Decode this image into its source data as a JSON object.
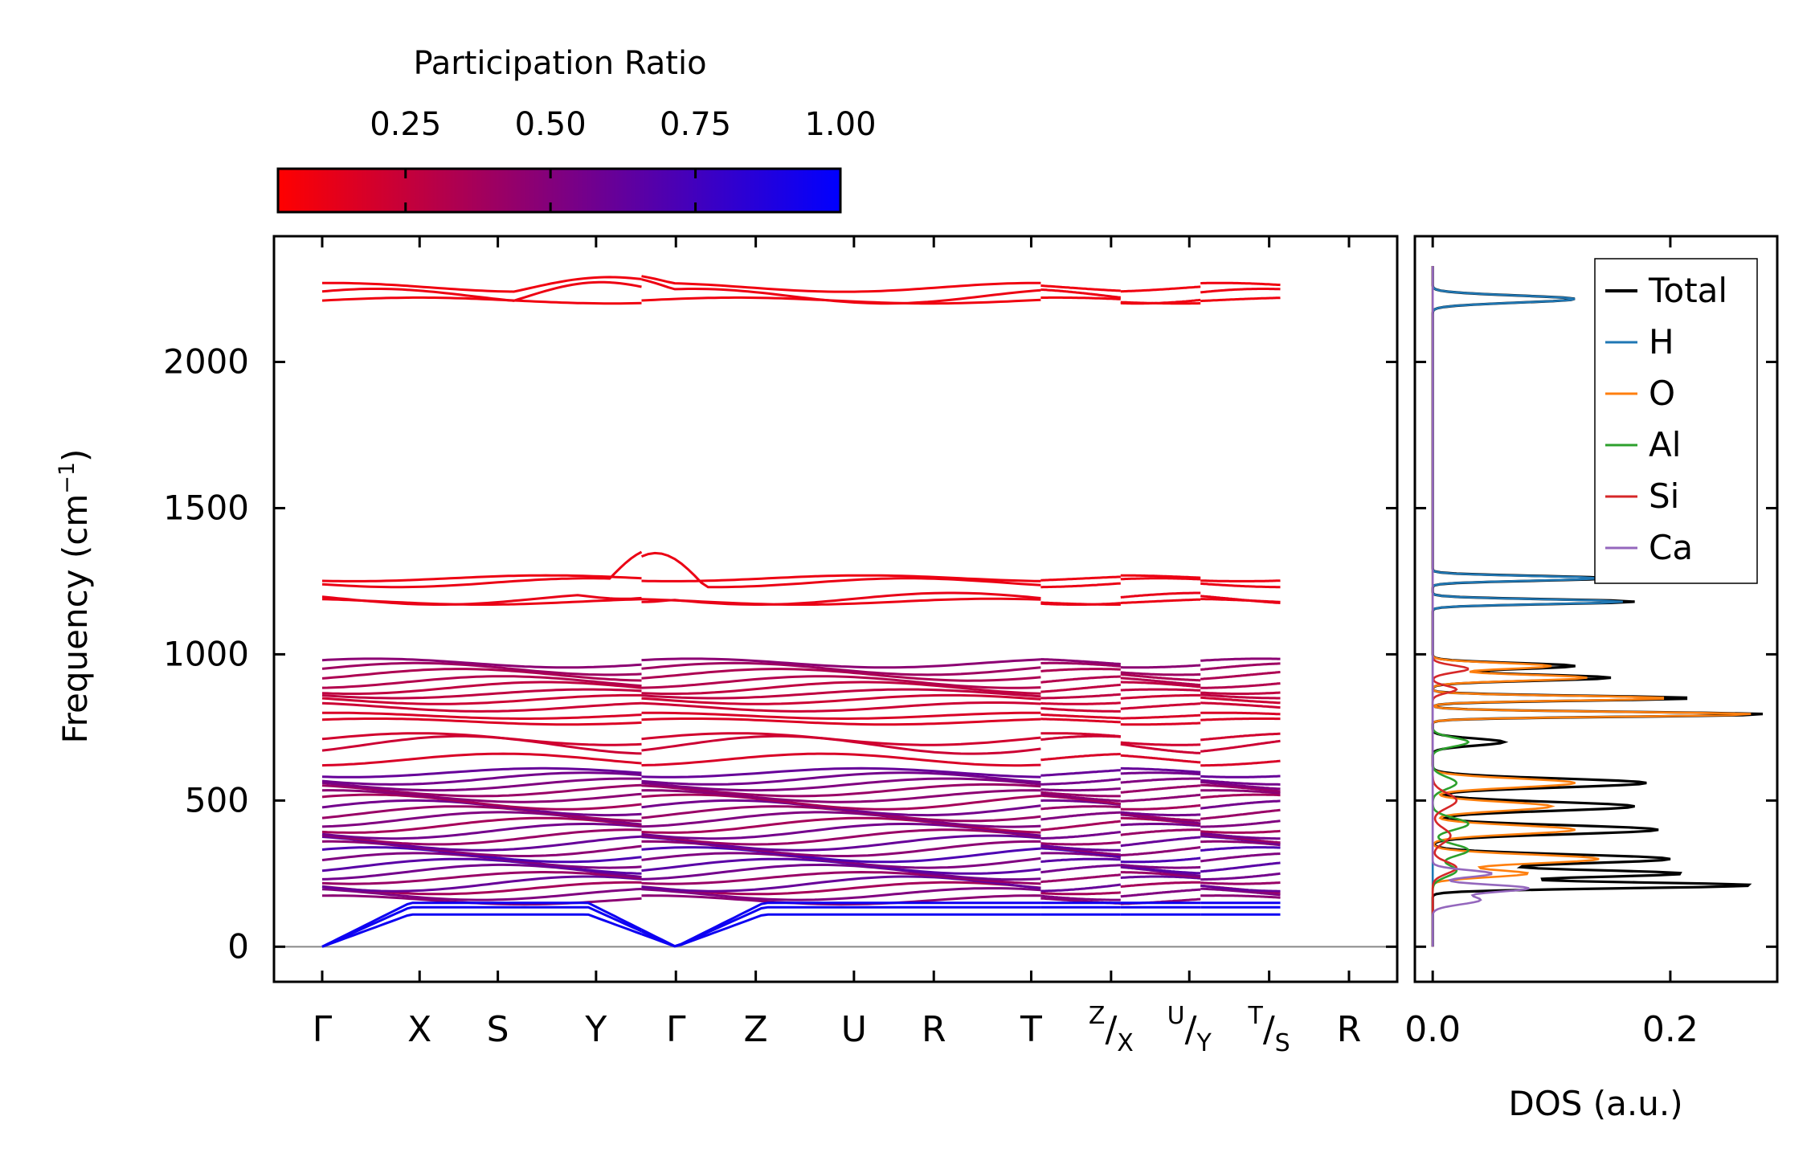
{
  "colorbar": {
    "title": "Participation Ratio",
    "ticks": [
      "0.25",
      "0.50",
      "0.75",
      "1.00"
    ],
    "tick_values": [
      0.25,
      0.5,
      0.75,
      1.0
    ],
    "range": [
      0.03,
      1.0
    ],
    "color_low": "#ff0000",
    "color_high": "#0000ff"
  },
  "chart_data": [
    {
      "type": "line",
      "name": "phonon-band-structure",
      "ylabel_main": "Frequency (cm",
      "ylabel_sup": "−1",
      "ylabel_close": ")",
      "ylim": [
        -120,
        2430
      ],
      "yticks": [
        "0",
        "500",
        "1000",
        "1500",
        "2000"
      ],
      "ytick_values": [
        0,
        500,
        1000,
        1500,
        2000
      ],
      "x_labels": [
        {
          "main": "Γ",
          "pos": 0
        },
        {
          "main": "X",
          "pos": 1
        },
        {
          "main": "S",
          "pos": 2
        },
        {
          "main": "Y",
          "pos": 3
        },
        {
          "main": "Γ",
          "pos": 4
        },
        {
          "main": "Z",
          "pos": 5
        },
        {
          "main": "U",
          "pos": 6
        },
        {
          "main": "R",
          "pos": 7
        },
        {
          "main": "T",
          "pos": 8
        },
        {
          "sup": "Z",
          "main": "/X",
          "pos": 9
        },
        {
          "sup": "U",
          "main": "/Y",
          "pos": 10
        },
        {
          "sup": "T",
          "main": "/S",
          "pos": 11
        },
        {
          "main": "R",
          "pos": 12
        }
      ],
      "tick_path_positions": [
        0,
        1.22,
        2.2,
        3.43,
        4.43,
        5.43,
        6.66,
        7.66,
        8.88,
        9.88,
        10.86,
        11.86,
        12.86
      ],
      "segments": [
        [
          0,
          4
        ],
        [
          4,
          9
        ],
        [
          9,
          10
        ],
        [
          10,
          11
        ],
        [
          11,
          12
        ]
      ],
      "x_total": 12.86,
      "baseline": 0,
      "bands": [
        {
          "freq": 2210,
          "pr": 0.06,
          "amp": 10
        },
        {
          "freq": 2225,
          "pr": 0.07,
          "amp": 25,
          "bump": {
            "center": 3.4,
            "width": 1.0,
            "height": 70
          }
        },
        {
          "freq": 2255,
          "pr": 0.06,
          "amp": 15,
          "bump": {
            "center": 3.4,
            "width": 1.0,
            "height": 40
          }
        },
        {
          "freq": 1180,
          "pr": 0.08,
          "amp": 10
        },
        {
          "freq": 1190,
          "pr": 0.09,
          "amp": 20,
          "bump": {
            "center": 3.8,
            "width": 0.6,
            "height": -20
          }
        },
        {
          "freq": 1245,
          "pr": 0.08,
          "amp": 15,
          "bump": {
            "center": 4.2,
            "width": 0.6,
            "height": 110
          }
        },
        {
          "freq": 1260,
          "pr": 0.07,
          "amp": 10
        },
        {
          "freq": 640,
          "pr": 0.15,
          "amp": 20
        },
        {
          "freq": 690,
          "pr": 0.2,
          "amp": 30
        },
        {
          "freq": 710,
          "pr": 0.18,
          "amp": 20
        },
        {
          "freq": 770,
          "pr": 0.14,
          "amp": 10
        },
        {
          "freq": 790,
          "pr": 0.15,
          "amp": 10
        },
        {
          "freq": 820,
          "pr": 0.2,
          "amp": 15
        },
        {
          "freq": 845,
          "pr": 0.2,
          "amp": 15
        },
        {
          "freq": 865,
          "pr": 0.25,
          "amp": 15
        },
        {
          "freq": 885,
          "pr": 0.25,
          "amp": 20
        },
        {
          "freq": 905,
          "pr": 0.3,
          "amp": 20
        },
        {
          "freq": 930,
          "pr": 0.32,
          "amp": 20
        },
        {
          "freq": 950,
          "pr": 0.38,
          "amp": 20
        },
        {
          "freq": 970,
          "pr": 0.45,
          "amp": 15
        },
        {
          "freq": 160,
          "pr": 0.45,
          "amp": 15
        },
        {
          "freq": 180,
          "pr": 0.5,
          "amp": 20
        },
        {
          "freq": 200,
          "pr": 0.35,
          "amp": 20
        },
        {
          "freq": 215,
          "pr": 0.6,
          "amp": 25
        },
        {
          "freq": 235,
          "pr": 0.4,
          "amp": 20
        },
        {
          "freq": 255,
          "pr": 0.55,
          "amp": 25
        },
        {
          "freq": 275,
          "pr": 0.65,
          "amp": 25
        },
        {
          "freq": 295,
          "pr": 0.5,
          "amp": 25
        },
        {
          "freq": 315,
          "pr": 0.7,
          "amp": 25
        },
        {
          "freq": 335,
          "pr": 0.45,
          "amp": 25
        },
        {
          "freq": 355,
          "pr": 0.6,
          "amp": 25
        },
        {
          "freq": 375,
          "pr": 0.4,
          "amp": 25
        },
        {
          "freq": 395,
          "pr": 0.55,
          "amp": 25
        },
        {
          "freq": 415,
          "pr": 0.35,
          "amp": 25
        },
        {
          "freq": 435,
          "pr": 0.5,
          "amp": 25
        },
        {
          "freq": 455,
          "pr": 0.4,
          "amp": 25
        },
        {
          "freq": 475,
          "pr": 0.55,
          "amp": 25
        },
        {
          "freq": 495,
          "pr": 0.35,
          "amp": 25
        },
        {
          "freq": 515,
          "pr": 0.45,
          "amp": 20
        },
        {
          "freq": 535,
          "pr": 0.4,
          "amp": 20
        },
        {
          "freq": 555,
          "pr": 0.5,
          "amp": 20
        },
        {
          "freq": 575,
          "pr": 0.55,
          "amp": 20
        },
        {
          "freq": 595,
          "pr": 0.6,
          "amp": 15
        }
      ],
      "acoustic_branches": [
        {
          "max": 150,
          "pr": 0.95
        },
        {
          "max": 135,
          "pr": 0.95
        },
        {
          "max": 110,
          "pr": 0.95
        }
      ]
    },
    {
      "type": "line",
      "name": "dos",
      "xlabel": "DOS (a.u.)",
      "xlim": [
        -0.015,
        0.29
      ],
      "xticks": [
        "0.0",
        "0.2"
      ],
      "xtick_values": [
        0.0,
        0.2
      ],
      "legend_position": "top-right",
      "series": [
        {
          "name": "Total",
          "color": "#000000",
          "peaks": [
            [
              2215,
              0.12,
              12
            ],
            [
              1180,
              0.17,
              8
            ],
            [
              1260,
              0.15,
              8
            ],
            [
              960,
              0.12,
              10
            ],
            [
              920,
              0.15,
              10
            ],
            [
              850,
              0.22,
              8
            ],
            [
              795,
              0.28,
              8
            ],
            [
              700,
              0.06,
              12
            ],
            [
              560,
              0.18,
              15
            ],
            [
              480,
              0.17,
              15
            ],
            [
              400,
              0.19,
              15
            ],
            [
              300,
              0.2,
              15
            ],
            [
              250,
              0.21,
              12
            ],
            [
              210,
              0.27,
              10
            ]
          ]
        },
        {
          "name": "H",
          "color": "#1f77b4",
          "peaks": [
            [
              2215,
              0.12,
              12
            ],
            [
              1180,
              0.16,
              8
            ],
            [
              1260,
              0.14,
              8
            ]
          ]
        },
        {
          "name": "O",
          "color": "#ff7f0e",
          "peaks": [
            [
              960,
              0.1,
              10
            ],
            [
              920,
              0.13,
              10
            ],
            [
              850,
              0.2,
              8
            ],
            [
              795,
              0.27,
              8
            ],
            [
              560,
              0.12,
              15
            ],
            [
              480,
              0.1,
              15
            ],
            [
              400,
              0.12,
              15
            ],
            [
              300,
              0.14,
              15
            ],
            [
              250,
              0.08,
              12
            ]
          ]
        },
        {
          "name": "Al",
          "color": "#2ca02c",
          "peaks": [
            [
              700,
              0.03,
              15
            ],
            [
              560,
              0.02,
              20
            ],
            [
              420,
              0.03,
              20
            ],
            [
              330,
              0.03,
              20
            ],
            [
              260,
              0.02,
              20
            ]
          ]
        },
        {
          "name": "Si",
          "color": "#d62728",
          "peaks": [
            [
              950,
              0.03,
              12
            ],
            [
              880,
              0.02,
              12
            ],
            [
              500,
              0.02,
              25
            ],
            [
              380,
              0.015,
              25
            ],
            [
              270,
              0.02,
              20
            ]
          ]
        },
        {
          "name": "Ca",
          "color": "#9467bd",
          "peaks": [
            [
              250,
              0.05,
              12
            ],
            [
              200,
              0.08,
              12
            ],
            [
              160,
              0.04,
              15
            ]
          ]
        }
      ]
    }
  ]
}
